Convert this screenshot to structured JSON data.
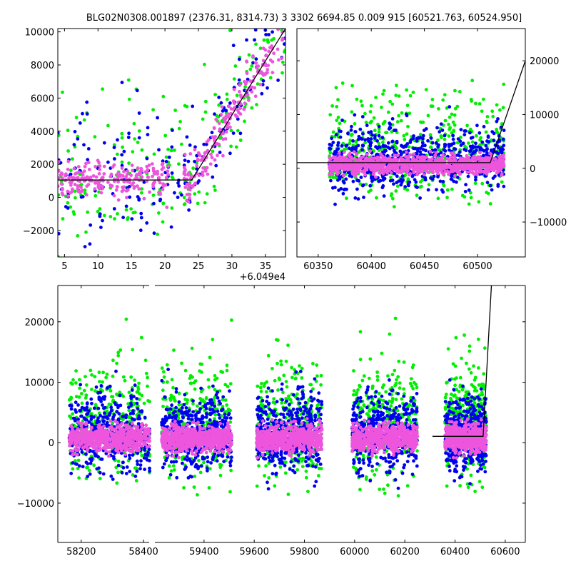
{
  "title": "BLG02N0308.001897 (2376.31, 8314.73)   3 3302 6694.85 0.009 915 [60521.763, 60524.950]",
  "series_colors": {
    "green": "#00ee00",
    "blue": "#0000ee",
    "pink": "#ee55dd",
    "model": "#000000"
  },
  "chart_data": [
    {
      "panel": "top-left",
      "type": "scatter",
      "xlim": [
        4,
        38
      ],
      "ylim": [
        -3600,
        10200
      ],
      "x_offset_label": "+6.049e4",
      "x_ticks": [
        5,
        10,
        15,
        20,
        25,
        30,
        35
      ],
      "x_tick_labels": [
        "5",
        "10",
        "15",
        "20",
        "25",
        "30",
        "35"
      ],
      "y_ticks": [
        -2000,
        0,
        2000,
        4000,
        6000,
        8000,
        10000
      ],
      "y_tick_labels": [
        "−2000",
        "0",
        "2000",
        "4000",
        "6000",
        "8000",
        "10000"
      ],
      "model_line": {
        "x": [
          4,
          24,
          38
        ],
        "y": [
          1050,
          1050,
          10200
        ]
      }
    },
    {
      "panel": "top-right",
      "type": "scatter",
      "xlim": [
        60330,
        60545
      ],
      "ylim": [
        -16500,
        26000
      ],
      "x_ticks": [
        60350,
        60400,
        60450,
        60500
      ],
      "x_tick_labels": [
        "60350",
        "60400",
        "60450",
        "60500"
      ],
      "y_ticks": [
        -10000,
        0,
        10000,
        20000
      ],
      "y_tick_labels": [
        "−10000",
        "0",
        "10000",
        "20000"
      ],
      "y_axis_side": "right",
      "model_line": {
        "x": [
          60330,
          60512,
          60545
        ],
        "y": [
          1050,
          1050,
          20000
        ]
      }
    },
    {
      "panel": "bottom",
      "type": "scatter",
      "xlim_segments": [
        [
          58125,
          58425
        ],
        [
          59190,
          60680
        ]
      ],
      "ylim": [
        -16500,
        26000
      ],
      "x_ticks": [
        58200,
        58400,
        59400,
        59600,
        59800,
        60000,
        60200,
        60400,
        60600
      ],
      "x_tick_labels": [
        "58200",
        "58400",
        "59400",
        "59600",
        "59800",
        "60000",
        "60200",
        "60400",
        "60600"
      ],
      "y_ticks": [
        -10000,
        0,
        10000,
        20000
      ],
      "y_tick_labels": [
        "−10000",
        "0",
        "10000",
        "20000"
      ],
      "seasons": [
        [
          58160,
          58420
        ],
        [
          59230,
          59510
        ],
        [
          59610,
          59870
        ],
        [
          59990,
          60250
        ],
        [
          60360,
          60525
        ]
      ],
      "model_line": {
        "x": [
          60310,
          60512,
          60545
        ],
        "y": [
          1050,
          1050,
          26000
        ]
      }
    }
  ]
}
